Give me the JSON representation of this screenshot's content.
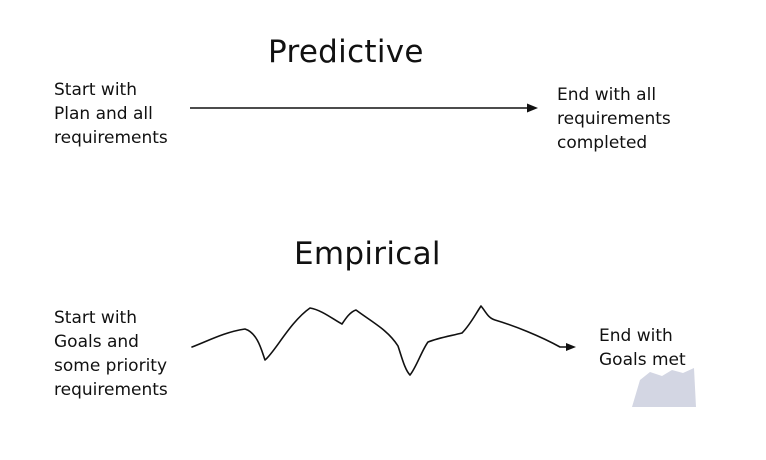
{
  "predictive": {
    "title": "Predictive",
    "start_lines": [
      "Start with",
      "Plan and all",
      "requirements"
    ],
    "end_lines": [
      "End with all",
      "requirements",
      "completed"
    ]
  },
  "empirical": {
    "title": "Empirical",
    "start_lines": [
      "Start with",
      "Goals and",
      "some priority",
      "requirements"
    ],
    "end_lines": [
      "End with",
      "Goals met"
    ]
  },
  "colors": {
    "ink": "#111111",
    "smudge": "#d3d6e3"
  }
}
